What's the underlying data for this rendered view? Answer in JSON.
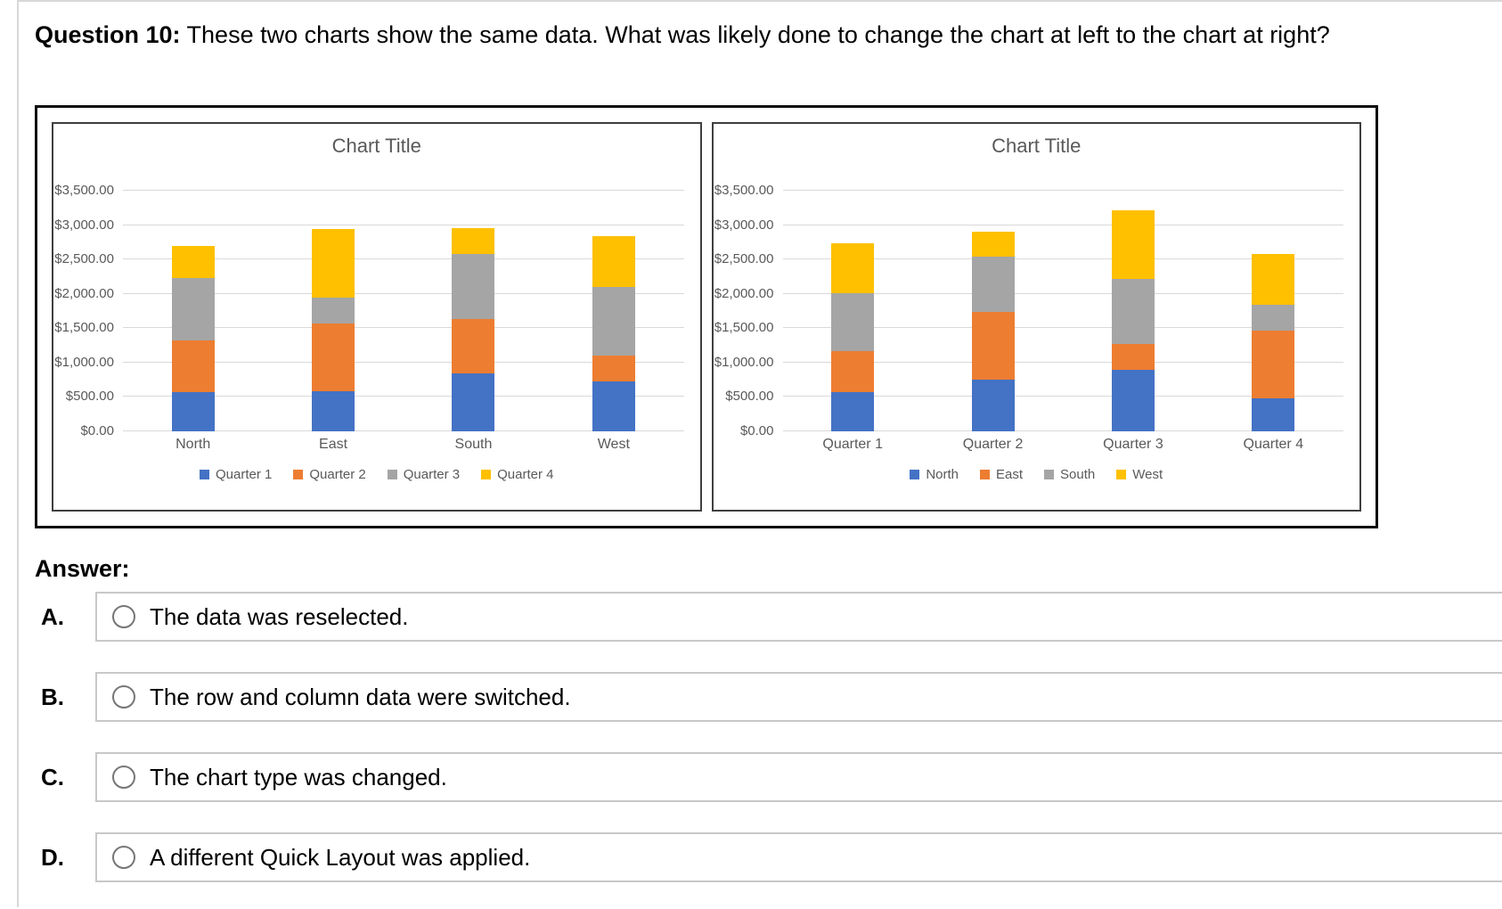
{
  "question": {
    "label": "Question 10:",
    "text": "These two charts show the same data. What was likely done to change the chart at left to the chart at right?"
  },
  "answer_heading": "Answer:",
  "options": [
    {
      "letter": "A.",
      "text": "The data was reselected.",
      "selected": false
    },
    {
      "letter": "B.",
      "text": "The row and column data were switched.",
      "selected": false
    },
    {
      "letter": "C.",
      "text": "The chart type was changed.",
      "selected": false
    },
    {
      "letter": "D.",
      "text": "A different Quick Layout was applied.",
      "selected": false
    }
  ],
  "colors": {
    "series_blue": "#4472C4",
    "series_orange": "#ED7D31",
    "series_gray": "#A5A5A5",
    "series_yellow": "#FFC000",
    "chart_text": "#595959",
    "gridline": "#D9D9D9",
    "outer_frame_border": "#0D0D0D",
    "chart_box_border": "#3F3F3F",
    "option_box_border": "#C8C8C8",
    "radio_border": "#767676",
    "page_border": "#D8D8D8"
  },
  "chart_data": [
    {
      "type": "bar",
      "stacked": true,
      "title": "Chart Title",
      "categories": [
        "North",
        "East",
        "South",
        "West"
      ],
      "series": [
        {
          "name": "Quarter 1",
          "color": "#4472C4",
          "values": [
            575,
            590,
            840,
            730
          ]
        },
        {
          "name": "Quarter 2",
          "color": "#ED7D31",
          "values": [
            750,
            985,
            800,
            370
          ]
        },
        {
          "name": "Quarter 3",
          "color": "#A5A5A5",
          "values": [
            900,
            375,
            940,
            1000
          ]
        },
        {
          "name": "Quarter 4",
          "color": "#FFC000",
          "values": [
            475,
            990,
            380,
            740
          ]
        }
      ],
      "y_tick_labels": [
        "$3,500.00",
        "$3,000.00",
        "$2,500.00",
        "$2,000.00",
        "$1,500.00",
        "$1,000.00",
        "$500.00",
        "$0.00"
      ],
      "ylim": [
        0,
        3500
      ],
      "grid": true,
      "legend_position": "bottom"
    },
    {
      "type": "bar",
      "stacked": true,
      "title": "Chart Title",
      "categories": [
        "Quarter 1",
        "Quarter 2",
        "Quarter 3",
        "Quarter 4"
      ],
      "series": [
        {
          "name": "North",
          "color": "#4472C4",
          "values": [
            575,
            750,
            900,
            475
          ]
        },
        {
          "name": "East",
          "color": "#ED7D31",
          "values": [
            590,
            985,
            375,
            990
          ]
        },
        {
          "name": "South",
          "color": "#A5A5A5",
          "values": [
            840,
            800,
            940,
            380
          ]
        },
        {
          "name": "West",
          "color": "#FFC000",
          "values": [
            730,
            370,
            1000,
            740
          ]
        }
      ],
      "y_tick_labels": [
        "$3,500.00",
        "$3,000.00",
        "$2,500.00",
        "$2,000.00",
        "$1,500.00",
        "$1,000.00",
        "$500.00",
        "$0.00"
      ],
      "ylim": [
        0,
        3500
      ],
      "grid": true,
      "legend_position": "bottom"
    }
  ]
}
